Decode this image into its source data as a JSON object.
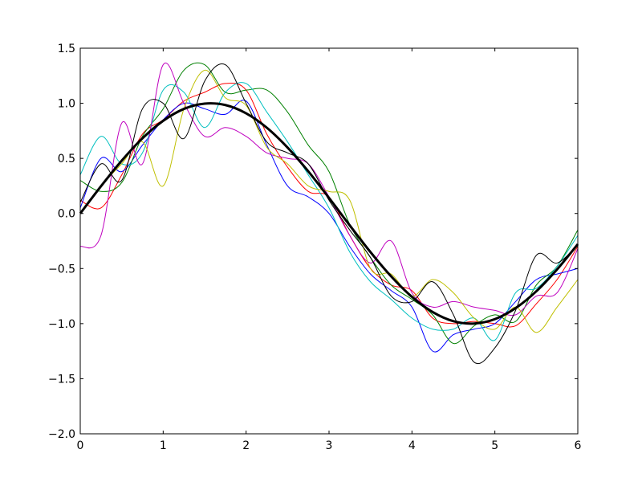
{
  "chart_data": {
    "type": "line",
    "title": "",
    "xlabel": "",
    "ylabel": "",
    "xlim": [
      0,
      6
    ],
    "ylim": [
      -2.0,
      1.5
    ],
    "grid": false,
    "legend": "none",
    "x_ticks": [
      "0",
      "1",
      "2",
      "3",
      "4",
      "5",
      "6"
    ],
    "y_ticks": [
      "−2.0",
      "−1.5",
      "−1.0",
      "−0.5",
      "0.0",
      "0.5",
      "1.0",
      "1.5"
    ],
    "x_tick_values": [
      0,
      1,
      2,
      3,
      4,
      5,
      6
    ],
    "y_tick_values": [
      -2.0,
      -1.5,
      -1.0,
      -0.5,
      0.0,
      0.5,
      1.0,
      1.5
    ],
    "x": [
      0,
      0.25,
      0.5,
      0.75,
      1.0,
      1.25,
      1.5,
      1.75,
      2.0,
      2.25,
      2.5,
      2.75,
      3.0,
      3.25,
      3.5,
      3.75,
      4.0,
      4.25,
      4.5,
      4.75,
      5.0,
      5.25,
      5.5,
      5.75,
      6.0
    ],
    "series": [
      {
        "color": "#ff0000",
        "linewidth": 1,
        "values": [
          0.12,
          0.05,
          0.35,
          0.72,
          0.85,
          1.02,
          1.1,
          1.18,
          1.12,
          0.72,
          0.42,
          0.2,
          0.15,
          -0.2,
          -0.5,
          -0.65,
          -0.7,
          -0.95,
          -1.0,
          -0.98,
          -1.0,
          -1.02,
          -0.82,
          -0.6,
          -0.3
        ]
      },
      {
        "color": "#0000ff",
        "linewidth": 1,
        "values": [
          0.05,
          0.5,
          0.38,
          0.62,
          0.85,
          1.0,
          0.95,
          0.9,
          1.02,
          0.62,
          0.25,
          0.15,
          0.0,
          -0.3,
          -0.55,
          -0.7,
          -0.85,
          -1.25,
          -1.1,
          -1.05,
          -1.0,
          -0.8,
          -0.6,
          -0.55,
          -0.5
        ]
      },
      {
        "color": "#008000",
        "linewidth": 1,
        "values": [
          0.3,
          0.2,
          0.28,
          0.7,
          0.95,
          1.3,
          1.35,
          1.1,
          1.12,
          1.12,
          0.92,
          0.62,
          0.38,
          -0.1,
          -0.4,
          -0.65,
          -0.78,
          -0.92,
          -1.18,
          -1.02,
          -0.92,
          -0.98,
          -0.65,
          -0.48,
          -0.15
        ]
      },
      {
        "color": "#00bfbf",
        "linewidth": 1,
        "values": [
          0.35,
          0.7,
          0.45,
          0.55,
          1.12,
          1.1,
          0.78,
          1.1,
          1.18,
          0.92,
          0.65,
          0.35,
          0.05,
          -0.35,
          -0.62,
          -0.78,
          -0.95,
          -1.05,
          -1.05,
          -0.95,
          -1.15,
          -0.72,
          -0.68,
          -0.48,
          -0.2
        ]
      },
      {
        "color": "#bf00bf",
        "linewidth": 1,
        "values": [
          -0.3,
          -0.2,
          0.82,
          0.45,
          1.35,
          1.0,
          0.7,
          0.78,
          0.7,
          0.55,
          0.5,
          0.45,
          0.15,
          -0.2,
          -0.45,
          -0.25,
          -0.72,
          -0.85,
          -0.8,
          -0.85,
          -0.88,
          -0.92,
          -0.75,
          -0.72,
          -0.32
        ]
      },
      {
        "color": "#bfbf00",
        "linewidth": 1,
        "values": [
          0.0,
          0.25,
          0.45,
          0.65,
          0.25,
          0.95,
          1.3,
          1.05,
          0.98,
          0.6,
          0.45,
          0.25,
          0.2,
          0.12,
          -0.5,
          -0.55,
          -0.75,
          -0.6,
          -0.72,
          -0.95,
          -1.05,
          -0.85,
          -1.08,
          -0.85,
          -0.6
        ]
      },
      {
        "color": "#000000",
        "linewidth": 1,
        "values": [
          0.1,
          0.45,
          0.3,
          0.95,
          1.0,
          0.68,
          1.2,
          1.35,
          1.0,
          0.65,
          0.55,
          0.45,
          0.12,
          -0.15,
          -0.4,
          -0.75,
          -0.8,
          -0.62,
          -0.92,
          -1.35,
          -1.22,
          -0.88,
          -0.38,
          -0.45,
          -0.28
        ]
      },
      {
        "color": "#000000",
        "linewidth": 3,
        "values": [
          0.0,
          0.247,
          0.479,
          0.682,
          0.841,
          0.949,
          0.997,
          0.984,
          0.909,
          0.778,
          0.598,
          0.382,
          0.141,
          -0.108,
          -0.351,
          -0.572,
          -0.757,
          -0.895,
          -0.978,
          -0.999,
          -0.959,
          -0.859,
          -0.706,
          -0.508,
          -0.279
        ]
      }
    ]
  }
}
